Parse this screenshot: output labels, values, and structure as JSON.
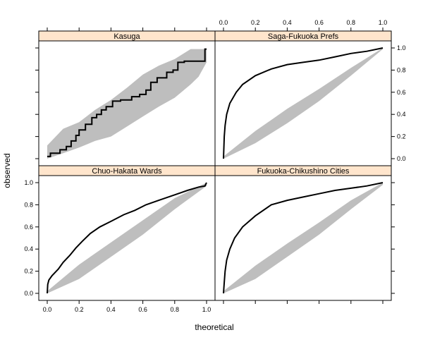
{
  "colors": {
    "strip": "#FFE5CC",
    "band": "#BEBEBE",
    "line": "#000000"
  },
  "chart_data": {
    "type": "line",
    "layout": "2x2 lattice (trellis) panels",
    "xlabel": "theoretical",
    "ylabel": "observed",
    "xlim": [
      0,
      1
    ],
    "ylim": [
      0,
      1
    ],
    "xticks": [
      "0.0",
      "0.2",
      "0.4",
      "0.6",
      "0.8",
      "1.0"
    ],
    "yticks": [
      "0.0",
      "0.2",
      "0.4",
      "0.6",
      "0.8",
      "1.0"
    ],
    "panels": [
      {
        "name": "Kasuga",
        "position": "top-left",
        "step": true,
        "observed": [
          [
            0,
            0.02
          ],
          [
            0.02,
            0.02
          ],
          [
            0.02,
            0.05
          ],
          [
            0.08,
            0.05
          ],
          [
            0.08,
            0.08
          ],
          [
            0.12,
            0.08
          ],
          [
            0.12,
            0.11
          ],
          [
            0.15,
            0.11
          ],
          [
            0.15,
            0.16
          ],
          [
            0.18,
            0.16
          ],
          [
            0.18,
            0.21
          ],
          [
            0.2,
            0.21
          ],
          [
            0.2,
            0.26
          ],
          [
            0.24,
            0.26
          ],
          [
            0.24,
            0.31
          ],
          [
            0.28,
            0.31
          ],
          [
            0.28,
            0.37
          ],
          [
            0.31,
            0.37
          ],
          [
            0.31,
            0.4
          ],
          [
            0.34,
            0.4
          ],
          [
            0.34,
            0.44
          ],
          [
            0.37,
            0.44
          ],
          [
            0.37,
            0.47
          ],
          [
            0.41,
            0.47
          ],
          [
            0.41,
            0.52
          ],
          [
            0.46,
            0.52
          ],
          [
            0.46,
            0.53
          ],
          [
            0.53,
            0.53
          ],
          [
            0.53,
            0.56
          ],
          [
            0.58,
            0.56
          ],
          [
            0.58,
            0.58
          ],
          [
            0.62,
            0.58
          ],
          [
            0.62,
            0.62
          ],
          [
            0.65,
            0.62
          ],
          [
            0.65,
            0.69
          ],
          [
            0.69,
            0.69
          ],
          [
            0.69,
            0.73
          ],
          [
            0.75,
            0.73
          ],
          [
            0.75,
            0.78
          ],
          [
            0.79,
            0.78
          ],
          [
            0.79,
            0.8
          ],
          [
            0.82,
            0.8
          ],
          [
            0.82,
            0.87
          ],
          [
            0.86,
            0.87
          ],
          [
            0.86,
            0.88
          ],
          [
            0.99,
            0.88
          ],
          [
            0.99,
            0.99
          ],
          [
            1,
            0.99
          ]
        ],
        "envelope_lower": [
          [
            0,
            0.0
          ],
          [
            0.1,
            0.05
          ],
          [
            0.2,
            0.1
          ],
          [
            0.3,
            0.16
          ],
          [
            0.4,
            0.2
          ],
          [
            0.5,
            0.29
          ],
          [
            0.6,
            0.38
          ],
          [
            0.7,
            0.47
          ],
          [
            0.8,
            0.55
          ],
          [
            0.9,
            0.67
          ],
          [
            0.95,
            0.74
          ],
          [
            1,
            0.87
          ]
        ],
        "envelope_upper": [
          [
            0,
            0.12
          ],
          [
            0.1,
            0.27
          ],
          [
            0.2,
            0.33
          ],
          [
            0.3,
            0.44
          ],
          [
            0.4,
            0.53
          ],
          [
            0.5,
            0.64
          ],
          [
            0.6,
            0.76
          ],
          [
            0.7,
            0.84
          ],
          [
            0.8,
            0.9
          ],
          [
            0.9,
            0.99
          ],
          [
            0.95,
            0.99
          ],
          [
            1,
            0.99
          ]
        ]
      },
      {
        "name": "Saga-Fukuoka Prefs",
        "position": "top-right",
        "step": false,
        "observed": [
          [
            0,
            0.0
          ],
          [
            0.005,
            0.2
          ],
          [
            0.01,
            0.3
          ],
          [
            0.02,
            0.4
          ],
          [
            0.04,
            0.5
          ],
          [
            0.08,
            0.6
          ],
          [
            0.12,
            0.67
          ],
          [
            0.2,
            0.75
          ],
          [
            0.3,
            0.81
          ],
          [
            0.4,
            0.85
          ],
          [
            0.5,
            0.87
          ],
          [
            0.6,
            0.89
          ],
          [
            0.7,
            0.92
          ],
          [
            0.8,
            0.95
          ],
          [
            0.9,
            0.97
          ],
          [
            1,
            1.0
          ]
        ],
        "envelope_lower": [
          [
            0,
            0.0
          ],
          [
            0.2,
            0.14
          ],
          [
            0.4,
            0.32
          ],
          [
            0.6,
            0.52
          ],
          [
            0.8,
            0.75
          ],
          [
            1,
            0.99
          ]
        ],
        "envelope_upper": [
          [
            0,
            0.02
          ],
          [
            0.2,
            0.25
          ],
          [
            0.4,
            0.45
          ],
          [
            0.6,
            0.63
          ],
          [
            0.8,
            0.82
          ],
          [
            1,
            1.0
          ]
        ]
      },
      {
        "name": "Chuo-Hakata Wards",
        "position": "bottom-left",
        "step": false,
        "observed": [
          [
            0,
            0.0
          ],
          [
            0.003,
            0.08
          ],
          [
            0.01,
            0.12
          ],
          [
            0.03,
            0.16
          ],
          [
            0.07,
            0.22
          ],
          [
            0.1,
            0.28
          ],
          [
            0.14,
            0.34
          ],
          [
            0.18,
            0.41
          ],
          [
            0.22,
            0.47
          ],
          [
            0.27,
            0.54
          ],
          [
            0.33,
            0.6
          ],
          [
            0.4,
            0.65
          ],
          [
            0.48,
            0.71
          ],
          [
            0.55,
            0.75
          ],
          [
            0.62,
            0.8
          ],
          [
            0.7,
            0.84
          ],
          [
            0.8,
            0.89
          ],
          [
            0.88,
            0.93
          ],
          [
            0.95,
            0.96
          ],
          [
            0.99,
            0.97
          ],
          [
            1,
            1.0
          ]
        ],
        "envelope_lower": [
          [
            0,
            0.0
          ],
          [
            0.2,
            0.13
          ],
          [
            0.4,
            0.33
          ],
          [
            0.6,
            0.53
          ],
          [
            0.8,
            0.76
          ],
          [
            1,
            0.97
          ]
        ],
        "envelope_upper": [
          [
            0,
            0.02
          ],
          [
            0.2,
            0.26
          ],
          [
            0.4,
            0.46
          ],
          [
            0.6,
            0.66
          ],
          [
            0.8,
            0.86
          ],
          [
            1,
            1.0
          ]
        ]
      },
      {
        "name": "Fukuoka-Chikushino Cities",
        "position": "bottom-right",
        "step": false,
        "observed": [
          [
            0,
            0.0
          ],
          [
            0.005,
            0.1
          ],
          [
            0.01,
            0.2
          ],
          [
            0.02,
            0.3
          ],
          [
            0.04,
            0.4
          ],
          [
            0.07,
            0.5
          ],
          [
            0.12,
            0.6
          ],
          [
            0.2,
            0.7
          ],
          [
            0.3,
            0.8
          ],
          [
            0.4,
            0.84
          ],
          [
            0.5,
            0.87
          ],
          [
            0.6,
            0.9
          ],
          [
            0.7,
            0.93
          ],
          [
            0.8,
            0.95
          ],
          [
            0.9,
            0.97
          ],
          [
            1,
            1.0
          ]
        ],
        "envelope_lower": [
          [
            0,
            0.0
          ],
          [
            0.2,
            0.13
          ],
          [
            0.4,
            0.33
          ],
          [
            0.6,
            0.53
          ],
          [
            0.8,
            0.76
          ],
          [
            1,
            0.98
          ]
        ],
        "envelope_upper": [
          [
            0,
            0.02
          ],
          [
            0.2,
            0.25
          ],
          [
            0.4,
            0.45
          ],
          [
            0.6,
            0.64
          ],
          [
            0.8,
            0.84
          ],
          [
            1,
            1.0
          ]
        ]
      }
    ]
  }
}
